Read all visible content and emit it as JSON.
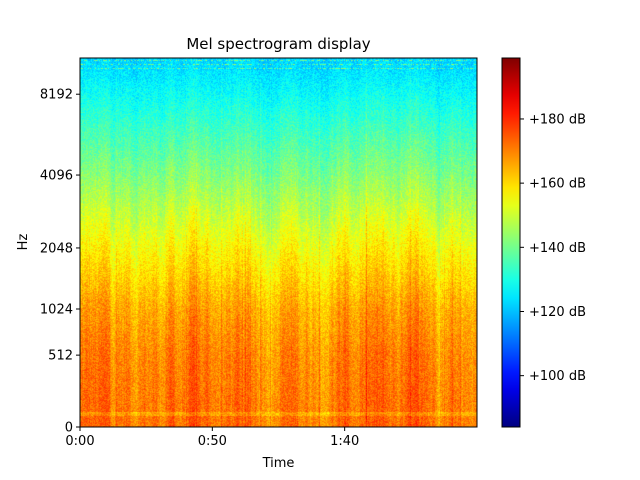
{
  "chart_data": {
    "type": "heatmap",
    "title": "Mel spectrogram display",
    "xlabel": "Time",
    "ylabel": "Hz",
    "colormap": "jet",
    "x_range_seconds": [
      0,
      150
    ],
    "x_ticks": [
      {
        "value": 0,
        "label": "0:00"
      },
      {
        "value": 50,
        "label": "0:50"
      },
      {
        "value": 100,
        "label": "1:40"
      }
    ],
    "y_scale": "mel",
    "y_ticks": [
      {
        "value": 0,
        "label": "0"
      },
      {
        "value": 512,
        "label": "512"
      },
      {
        "value": 1024,
        "label": "1024"
      },
      {
        "value": 2048,
        "label": "2048"
      },
      {
        "value": 4096,
        "label": "4096"
      },
      {
        "value": 8192,
        "label": "8192"
      }
    ],
    "colorbar": {
      "range_db": [
        84,
        199
      ],
      "ticks": [
        {
          "value": 100,
          "label": "+100 dB"
        },
        {
          "value": 120,
          "label": "+120 dB"
        },
        {
          "value": 140,
          "label": "+140 dB"
        },
        {
          "value": 160,
          "label": "+160 dB"
        },
        {
          "value": 180,
          "label": "+180 dB"
        }
      ]
    },
    "approx_mean_db_by_frequency": [
      {
        "hz": 0,
        "db": 172
      },
      {
        "hz": 512,
        "db": 170
      },
      {
        "hz": 1024,
        "db": 166
      },
      {
        "hz": 2048,
        "db": 156
      },
      {
        "hz": 4096,
        "db": 142
      },
      {
        "hz": 8192,
        "db": 128
      },
      {
        "hz": 11025,
        "db": 122
      }
    ]
  }
}
